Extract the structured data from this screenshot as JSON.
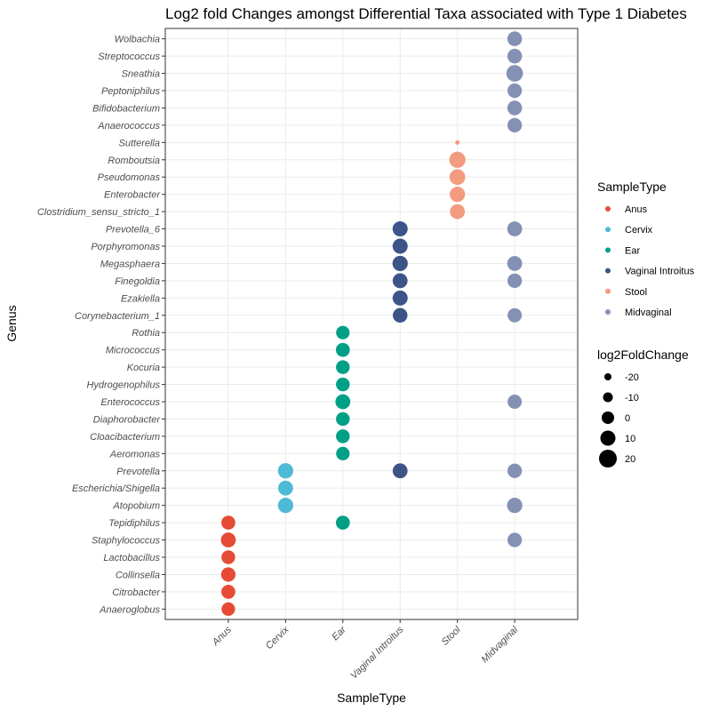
{
  "chart_data": {
    "type": "scatter",
    "title": "Log2 fold Changes amongst Differential Taxa associated with Type 1 Diabetes",
    "xlabel": "SampleType",
    "ylabel": "Genus",
    "categories_x": [
      "Anus",
      "Cervix",
      "Ear",
      "Vaginal Introitus",
      "Stool",
      "Midvaginal"
    ],
    "categories_y": [
      "Anaeroglobus",
      "Citrobacter",
      "Collinsella",
      "Lactobacillus",
      "Staphylococcus",
      "Tepidiphilus",
      "Atopobium",
      "Escherichia/Shigella",
      "Prevotella",
      "Aeromonas",
      "Cloacibacterium",
      "Diaphorobacter",
      "Enterococcus",
      "Hydrogenophilus",
      "Kocuria",
      "Micrococcus",
      "Rothia",
      "Corynebacterium_1",
      "Ezakiella",
      "Finegoldia",
      "Megasphaera",
      "Porphyromonas",
      "Prevotella_6",
      "Clostridium_sensu_stricto_1",
      "Enterobacter",
      "Pseudomonas",
      "Romboutsia",
      "Sutterella",
      "Anaerococcus",
      "Bifidobacterium",
      "Peptoniphilus",
      "Sneathia",
      "Streptococcus",
      "Wolbachia"
    ],
    "legend_color": {
      "title": "SampleType",
      "entries": [
        {
          "label": "Anus",
          "color": "#E64B35"
        },
        {
          "label": "Cervix",
          "color": "#4DBBD5"
        },
        {
          "label": "Ear",
          "color": "#00A087"
        },
        {
          "label": "Vaginal Introitus",
          "color": "#3C5488"
        },
        {
          "label": "Stool",
          "color": "#F39B7F"
        },
        {
          "label": "Midvaginal",
          "color": "#8491B4"
        }
      ]
    },
    "legend_size": {
      "title": "log2FoldChange",
      "values": [
        -20,
        -10,
        0,
        10,
        20
      ],
      "labels": [
        "-20",
        "-10",
        "0",
        "10",
        "20"
      ]
    },
    "grid": true,
    "legend_position": "right",
    "points": [
      {
        "x": "Anus",
        "y": "Anaeroglobus",
        "value": 2
      },
      {
        "x": "Anus",
        "y": "Citrobacter",
        "value": 4
      },
      {
        "x": "Anus",
        "y": "Collinsella",
        "value": 6
      },
      {
        "x": "Anus",
        "y": "Lactobacillus",
        "value": 3
      },
      {
        "x": "Anus",
        "y": "Staphylococcus",
        "value": 8
      },
      {
        "x": "Anus",
        "y": "Tepidiphilus",
        "value": 4
      },
      {
        "x": "Cervix",
        "y": "Atopobium",
        "value": 10
      },
      {
        "x": "Cervix",
        "y": "Escherichia/Shigella",
        "value": 8
      },
      {
        "x": "Cervix",
        "y": "Prevotella",
        "value": 10
      },
      {
        "x": "Ear",
        "y": "Tepidiphilus",
        "value": 4
      },
      {
        "x": "Ear",
        "y": "Aeromonas",
        "value": 2
      },
      {
        "x": "Ear",
        "y": "Cloacibacterium",
        "value": 3
      },
      {
        "x": "Ear",
        "y": "Diaphorobacter",
        "value": 3
      },
      {
        "x": "Ear",
        "y": "Enterococcus",
        "value": 8
      },
      {
        "x": "Ear",
        "y": "Hydrogenophilus",
        "value": 3
      },
      {
        "x": "Ear",
        "y": "Kocuria",
        "value": 3
      },
      {
        "x": "Ear",
        "y": "Micrococcus",
        "value": 4
      },
      {
        "x": "Ear",
        "y": "Rothia",
        "value": 2
      },
      {
        "x": "Vaginal Introitus",
        "y": "Prevotella",
        "value": 8
      },
      {
        "x": "Vaginal Introitus",
        "y": "Corynebacterium_1",
        "value": 7
      },
      {
        "x": "Vaginal Introitus",
        "y": "Ezakiella",
        "value": 9
      },
      {
        "x": "Vaginal Introitus",
        "y": "Finegoldia",
        "value": 8
      },
      {
        "x": "Vaginal Introitus",
        "y": "Megasphaera",
        "value": 10
      },
      {
        "x": "Vaginal Introitus",
        "y": "Porphyromonas",
        "value": 9
      },
      {
        "x": "Vaginal Introitus",
        "y": "Prevotella_6",
        "value": 9
      },
      {
        "x": "Stool",
        "y": "Clostridium_sensu_stricto_1",
        "value": 8
      },
      {
        "x": "Stool",
        "y": "Enterobacter",
        "value": 10
      },
      {
        "x": "Stool",
        "y": "Pseudomonas",
        "value": 12
      },
      {
        "x": "Stool",
        "y": "Romboutsia",
        "value": 14
      },
      {
        "x": "Stool",
        "y": "Sutterella",
        "value": -22
      },
      {
        "x": "Midvaginal",
        "y": "Staphylococcus",
        "value": 6
      },
      {
        "x": "Midvaginal",
        "y": "Atopobium",
        "value": 10
      },
      {
        "x": "Midvaginal",
        "y": "Prevotella",
        "value": 6
      },
      {
        "x": "Midvaginal",
        "y": "Enterococcus",
        "value": 5
      },
      {
        "x": "Midvaginal",
        "y": "Corynebacterium_1",
        "value": 5
      },
      {
        "x": "Midvaginal",
        "y": "Finegoldia",
        "value": 6
      },
      {
        "x": "Midvaginal",
        "y": "Megasphaera",
        "value": 8
      },
      {
        "x": "Midvaginal",
        "y": "Prevotella_6",
        "value": 8
      },
      {
        "x": "Midvaginal",
        "y": "Anaerococcus",
        "value": 6
      },
      {
        "x": "Midvaginal",
        "y": "Bifidobacterium",
        "value": 7
      },
      {
        "x": "Midvaginal",
        "y": "Peptoniphilus",
        "value": 6
      },
      {
        "x": "Midvaginal",
        "y": "Sneathia",
        "value": 16
      },
      {
        "x": "Midvaginal",
        "y": "Streptococcus",
        "value": 7
      },
      {
        "x": "Midvaginal",
        "y": "Wolbachia",
        "value": 7
      }
    ]
  }
}
